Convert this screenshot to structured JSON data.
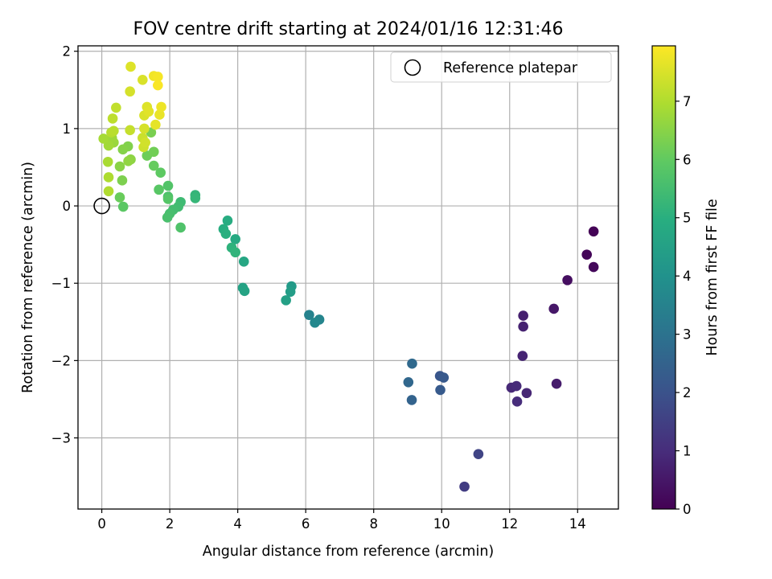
{
  "chart_data": {
    "type": "scatter",
    "title": "FOV centre drift starting at 2024/01/16 12:31:46",
    "xlabel": "Angular distance from reference (arcmin)",
    "ylabel": "Rotation from reference (arcmin)",
    "xlim": [
      -0.7,
      15.2
    ],
    "ylim": [
      -3.92,
      2.07
    ],
    "xticks": [
      0,
      2,
      4,
      6,
      8,
      10,
      12,
      14
    ],
    "yticks": [
      -3,
      -2,
      -1,
      0,
      1,
      2
    ],
    "grid": true,
    "legend": {
      "placement": "upper-right",
      "entries": [
        "Reference platepar"
      ]
    },
    "colorbar": {
      "label": "Hours from first FF file",
      "colormap": "viridis",
      "range": [
        0,
        7.95
      ],
      "ticks": [
        0,
        1,
        2,
        3,
        4,
        5,
        6,
        7
      ]
    },
    "reference_point": {
      "x": 0,
      "y": 0,
      "label": "Reference platepar"
    },
    "points": [
      {
        "x": 14.47,
        "y": -0.33,
        "h": 0.05
      },
      {
        "x": 14.27,
        "y": -0.63,
        "h": 0.1
      },
      {
        "x": 14.47,
        "y": -0.79,
        "h": 0.15
      },
      {
        "x": 13.7,
        "y": -0.96,
        "h": 0.3
      },
      {
        "x": 13.3,
        "y": -1.33,
        "h": 0.5
      },
      {
        "x": 13.38,
        "y": -2.3,
        "h": 0.6
      },
      {
        "x": 12.4,
        "y": -1.42,
        "h": 0.7
      },
      {
        "x": 12.4,
        "y": -1.56,
        "h": 0.75
      },
      {
        "x": 12.38,
        "y": -1.94,
        "h": 0.8
      },
      {
        "x": 12.5,
        "y": -2.42,
        "h": 0.85
      },
      {
        "x": 12.05,
        "y": -2.35,
        "h": 0.9
      },
      {
        "x": 12.2,
        "y": -2.33,
        "h": 0.95
      },
      {
        "x": 12.22,
        "y": -2.53,
        "h": 1.0
      },
      {
        "x": 11.08,
        "y": -3.21,
        "h": 1.6
      },
      {
        "x": 10.67,
        "y": -3.63,
        "h": 1.4
      },
      {
        "x": 9.95,
        "y": -2.2,
        "h": 2.1
      },
      {
        "x": 10.06,
        "y": -2.22,
        "h": 2.2
      },
      {
        "x": 9.96,
        "y": -2.38,
        "h": 2.25
      },
      {
        "x": 9.13,
        "y": -2.04,
        "h": 2.7
      },
      {
        "x": 9.02,
        "y": -2.28,
        "h": 2.65
      },
      {
        "x": 9.12,
        "y": -2.51,
        "h": 2.5
      },
      {
        "x": 6.1,
        "y": -1.41,
        "h": 3.5
      },
      {
        "x": 6.4,
        "y": -1.47,
        "h": 3.6
      },
      {
        "x": 6.27,
        "y": -1.51,
        "h": 3.7
      },
      {
        "x": 5.58,
        "y": -1.04,
        "h": 4.3
      },
      {
        "x": 5.55,
        "y": -1.11,
        "h": 4.4
      },
      {
        "x": 5.42,
        "y": -1.22,
        "h": 4.5
      },
      {
        "x": 4.15,
        "y": -1.06,
        "h": 4.55
      },
      {
        "x": 4.2,
        "y": -1.1,
        "h": 4.6
      },
      {
        "x": 4.18,
        "y": -0.72,
        "h": 4.7
      },
      {
        "x": 3.93,
        "y": -0.43,
        "h": 4.8
      },
      {
        "x": 3.7,
        "y": -0.19,
        "h": 4.9
      },
      {
        "x": 3.58,
        "y": -0.3,
        "h": 4.95
      },
      {
        "x": 3.65,
        "y": -0.36,
        "h": 5.0
      },
      {
        "x": 3.82,
        "y": -0.54,
        "h": 5.1
      },
      {
        "x": 3.93,
        "y": -0.6,
        "h": 5.15
      },
      {
        "x": 2.75,
        "y": 0.14,
        "h": 5.2
      },
      {
        "x": 2.75,
        "y": 0.1,
        "h": 5.25
      },
      {
        "x": 2.32,
        "y": 0.05,
        "h": 5.4
      },
      {
        "x": 2.25,
        "y": -0.01,
        "h": 5.45
      },
      {
        "x": 2.1,
        "y": -0.05,
        "h": 5.5
      },
      {
        "x": 2.0,
        "y": -0.1,
        "h": 5.55
      },
      {
        "x": 1.93,
        "y": -0.15,
        "h": 5.6
      },
      {
        "x": 2.32,
        "y": -0.28,
        "h": 5.7
      },
      {
        "x": 1.95,
        "y": 0.12,
        "h": 5.65
      },
      {
        "x": 1.95,
        "y": 0.26,
        "h": 5.75
      },
      {
        "x": 1.95,
        "y": 0.09,
        "h": 5.8
      },
      {
        "x": 1.68,
        "y": 0.21,
        "h": 5.85
      },
      {
        "x": 1.73,
        "y": 0.43,
        "h": 5.95
      },
      {
        "x": 1.53,
        "y": 0.52,
        "h": 6.05
      },
      {
        "x": 1.33,
        "y": 0.65,
        "h": 6.15
      },
      {
        "x": 1.53,
        "y": 0.7,
        "h": 6.2
      },
      {
        "x": 1.45,
        "y": 0.95,
        "h": 6.3
      },
      {
        "x": 0.77,
        "y": 0.77,
        "h": 6.4
      },
      {
        "x": 0.62,
        "y": 0.73,
        "h": 6.45
      },
      {
        "x": 0.53,
        "y": 0.51,
        "h": 6.5
      },
      {
        "x": 0.85,
        "y": 0.6,
        "h": 6.55
      },
      {
        "x": 0.78,
        "y": 0.58,
        "h": 6.6
      },
      {
        "x": 0.6,
        "y": 0.33,
        "h": 6.35
      },
      {
        "x": 0.53,
        "y": 0.11,
        "h": 6.1
      },
      {
        "x": 0.63,
        "y": -0.01,
        "h": 5.9
      },
      {
        "x": 0.35,
        "y": 0.82,
        "h": 6.7
      },
      {
        "x": 0.3,
        "y": 0.88,
        "h": 6.75
      },
      {
        "x": 0.2,
        "y": 0.78,
        "h": 6.8
      },
      {
        "x": 0.05,
        "y": 0.87,
        "h": 6.85
      },
      {
        "x": 0.18,
        "y": 0.57,
        "h": 6.9
      },
      {
        "x": 0.2,
        "y": 0.37,
        "h": 6.95
      },
      {
        "x": 0.2,
        "y": 0.19,
        "h": 7.0
      },
      {
        "x": 0.28,
        "y": 0.95,
        "h": 7.05
      },
      {
        "x": 0.35,
        "y": 0.97,
        "h": 7.1
      },
      {
        "x": 0.32,
        "y": 1.13,
        "h": 7.15
      },
      {
        "x": 0.42,
        "y": 1.27,
        "h": 7.2
      },
      {
        "x": 0.83,
        "y": 0.98,
        "h": 7.25
      },
      {
        "x": 1.2,
        "y": 0.88,
        "h": 7.3
      },
      {
        "x": 1.23,
        "y": 0.76,
        "h": 7.35
      },
      {
        "x": 1.28,
        "y": 0.82,
        "h": 7.4
      },
      {
        "x": 1.25,
        "y": 1.0,
        "h": 7.45
      },
      {
        "x": 1.25,
        "y": 1.17,
        "h": 7.5
      },
      {
        "x": 1.33,
        "y": 1.28,
        "h": 7.55
      },
      {
        "x": 1.38,
        "y": 1.22,
        "h": 7.6
      },
      {
        "x": 1.58,
        "y": 1.05,
        "h": 7.65
      },
      {
        "x": 1.7,
        "y": 1.18,
        "h": 7.7
      },
      {
        "x": 1.75,
        "y": 1.28,
        "h": 7.75
      },
      {
        "x": 1.2,
        "y": 1.63,
        "h": 7.5
      },
      {
        "x": 0.83,
        "y": 1.48,
        "h": 7.45
      },
      {
        "x": 0.85,
        "y": 1.8,
        "h": 7.55
      },
      {
        "x": 1.53,
        "y": 1.68,
        "h": 7.8
      },
      {
        "x": 1.65,
        "y": 1.67,
        "h": 7.85
      },
      {
        "x": 1.65,
        "y": 1.56,
        "h": 7.9
      }
    ]
  }
}
